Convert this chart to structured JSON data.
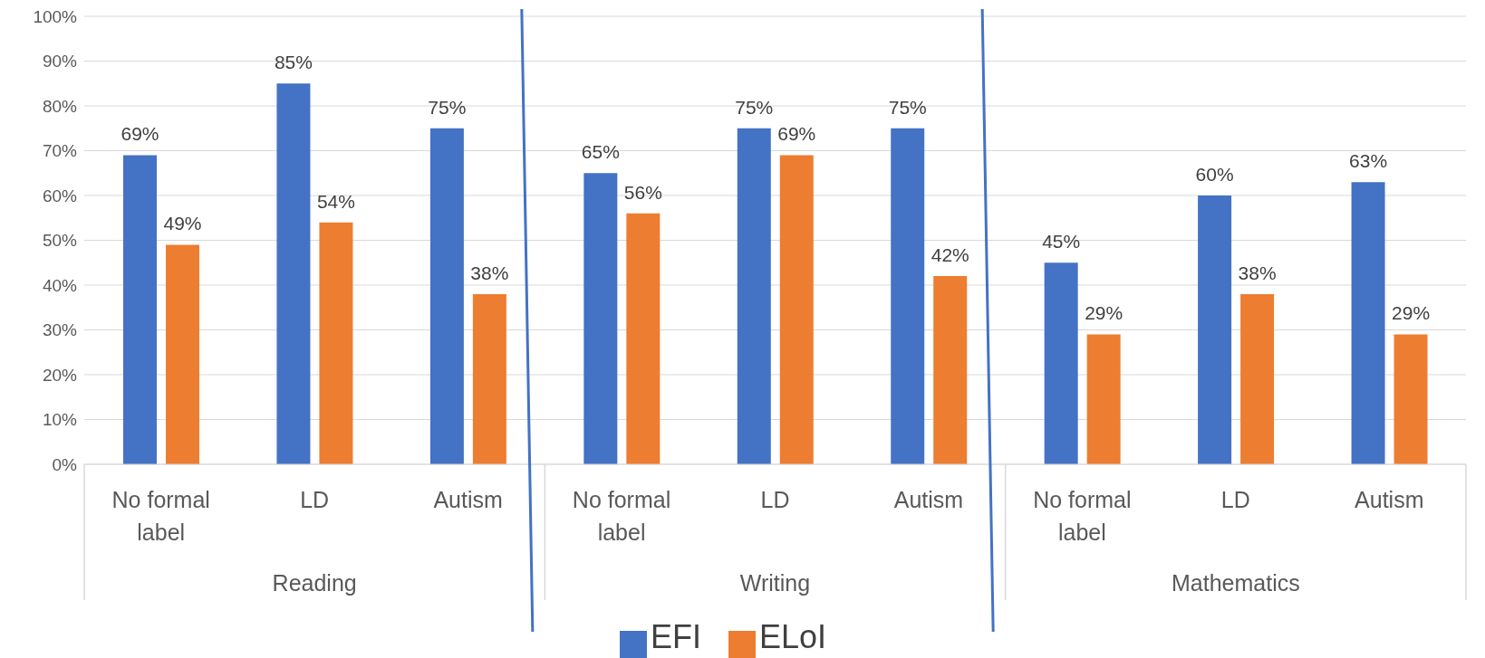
{
  "chart_data": {
    "type": "bar",
    "categories": [
      "No formal label",
      "LD",
      "Autism",
      "No formal label",
      "LD",
      "Autism",
      "No formal label",
      "LD",
      "Autism"
    ],
    "series": [
      {
        "name": "EFI",
        "color": "#4472c4",
        "values": [
          69,
          85,
          75,
          65,
          75,
          75,
          45,
          60,
          63
        ],
        "value_labels": [
          "69%",
          "85%",
          "75%",
          "65%",
          "75%",
          "75%",
          "45%",
          "60%",
          "63%"
        ]
      },
      {
        "name": "ELoI",
        "color": "#ed7d31",
        "values": [
          49,
          54,
          38,
          56,
          69,
          42,
          29,
          38,
          29
        ],
        "value_labels": [
          "49%",
          "54%",
          "38%",
          "56%",
          "69%",
          "42%",
          "29%",
          "38%",
          "29%"
        ]
      }
    ],
    "annotations": [
      "Reading",
      "Writing",
      "Mathematics"
    ],
    "ylim": [
      0,
      100
    ],
    "yticks": [
      {
        "value": 0,
        "label": "0%"
      },
      {
        "value": 10,
        "label": "10%"
      },
      {
        "value": 20,
        "label": "20%"
      },
      {
        "value": 30,
        "label": "30%"
      },
      {
        "value": 40,
        "label": "40%"
      },
      {
        "value": 50,
        "label": "50%"
      },
      {
        "value": 60,
        "label": "60%"
      },
      {
        "value": 70,
        "label": "70%"
      },
      {
        "value": 80,
        "label": "80%"
      },
      {
        "value": 90,
        "label": "90%"
      },
      {
        "value": 100,
        "label": "100%"
      }
    ],
    "grid": "y",
    "legend": "bottom"
  }
}
